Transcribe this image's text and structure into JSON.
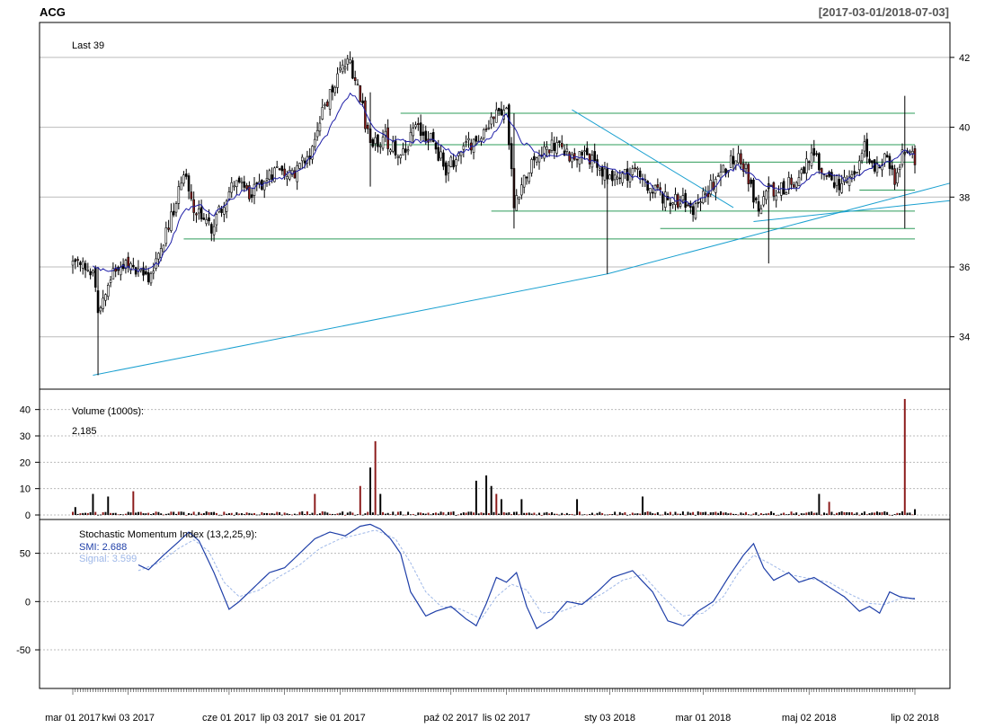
{
  "header": {
    "symbol": "ACG",
    "date_range": "[2017-03-01/2018-07-03]"
  },
  "colors": {
    "up": "#ffffff",
    "down": "#8b1a1a",
    "outline": "#000000",
    "sma": "#1f1fa8",
    "support": "#2e9c5a",
    "trend": "#1aa0d0",
    "smi": "#1f3fa8",
    "signal": "#9fb8e8",
    "grid": "#bbbbbb"
  },
  "chart_data": [
    {
      "type": "candlestick",
      "panel": "price",
      "annotation": "Last 39",
      "ylim": [
        32.5,
        43
      ],
      "y_ticks": [
        34,
        36,
        38,
        40,
        42
      ],
      "x_tick_labels": [
        "mar 01 2017",
        "kwi 03 2017",
        "cze 01 2017",
        "lip 03 2017",
        "sie 01 2017",
        "paź 02 2017",
        "lis 02 2017",
        "sty 03 2018",
        "mar 01 2018",
        "maj 02 2018",
        "lip 02 2018"
      ],
      "x_tick_index": [
        0,
        22,
        62,
        84,
        106,
        150,
        172,
        213,
        250,
        292,
        334
      ],
      "n_bars": 335,
      "anchors": [
        [
          0,
          36.1
        ],
        [
          8,
          35.9
        ],
        [
          10,
          34.6
        ],
        [
          14,
          35.7
        ],
        [
          20,
          36.0
        ],
        [
          26,
          35.8
        ],
        [
          30,
          35.7
        ],
        [
          34,
          36.4
        ],
        [
          40,
          37.6
        ],
        [
          44,
          38.8
        ],
        [
          48,
          37.6
        ],
        [
          55,
          37.1
        ],
        [
          60,
          37.9
        ],
        [
          64,
          38.4
        ],
        [
          70,
          38.1
        ],
        [
          76,
          38.5
        ],
        [
          82,
          38.9
        ],
        [
          88,
          38.6
        ],
        [
          94,
          39.3
        ],
        [
          100,
          40.6
        ],
        [
          106,
          41.6
        ],
        [
          110,
          41.9
        ],
        [
          114,
          40.8
        ],
        [
          118,
          39.5
        ],
        [
          124,
          39.7
        ],
        [
          130,
          39.1
        ],
        [
          136,
          39.9
        ],
        [
          142,
          39.7
        ],
        [
          148,
          38.8
        ],
        [
          154,
          39.3
        ],
        [
          160,
          39.7
        ],
        [
          164,
          39.9
        ],
        [
          168,
          40.6
        ],
        [
          172,
          40.4
        ],
        [
          175,
          37.9
        ],
        [
          180,
          38.7
        ],
        [
          186,
          39.3
        ],
        [
          192,
          39.5
        ],
        [
          198,
          39.2
        ],
        [
          204,
          39.1
        ],
        [
          210,
          38.8
        ],
        [
          216,
          38.5
        ],
        [
          222,
          38.8
        ],
        [
          228,
          38.3
        ],
        [
          234,
          38.0
        ],
        [
          240,
          37.9
        ],
        [
          246,
          37.7
        ],
        [
          252,
          38.2
        ],
        [
          258,
          38.8
        ],
        [
          264,
          39.2
        ],
        [
          268,
          38.6
        ],
        [
          272,
          37.5
        ],
        [
          276,
          38.2
        ],
        [
          282,
          38.3
        ],
        [
          288,
          38.5
        ],
        [
          294,
          39.3
        ],
        [
          298,
          38.6
        ],
        [
          304,
          38.4
        ],
        [
          310,
          38.5
        ],
        [
          314,
          39.4
        ],
        [
          318,
          38.8
        ],
        [
          322,
          39.1
        ],
        [
          326,
          38.4
        ],
        [
          330,
          39.5
        ],
        [
          334,
          39.0
        ]
      ],
      "sma_anchors": [
        [
          8,
          36.0
        ],
        [
          14,
          35.9
        ],
        [
          20,
          36.0
        ],
        [
          26,
          35.9
        ],
        [
          34,
          36.1
        ],
        [
          40,
          36.9
        ],
        [
          44,
          37.6
        ],
        [
          50,
          37.8
        ],
        [
          56,
          37.5
        ],
        [
          62,
          37.9
        ],
        [
          68,
          38.2
        ],
        [
          76,
          38.4
        ],
        [
          84,
          38.6
        ],
        [
          92,
          38.9
        ],
        [
          100,
          39.7
        ],
        [
          106,
          40.5
        ],
        [
          110,
          41.0
        ],
        [
          114,
          40.7
        ],
        [
          120,
          39.9
        ],
        [
          128,
          39.6
        ],
        [
          136,
          39.6
        ],
        [
          144,
          39.6
        ],
        [
          152,
          39.2
        ],
        [
          160,
          39.5
        ],
        [
          166,
          39.7
        ],
        [
          172,
          40.4
        ],
        [
          178,
          39.6
        ],
        [
          186,
          39.2
        ],
        [
          194,
          39.2
        ],
        [
          202,
          39.1
        ],
        [
          210,
          38.9
        ],
        [
          218,
          38.7
        ],
        [
          226,
          38.5
        ],
        [
          234,
          38.1
        ],
        [
          240,
          37.9
        ],
        [
          246,
          37.8
        ],
        [
          252,
          38.1
        ],
        [
          258,
          38.6
        ],
        [
          264,
          38.9
        ],
        [
          270,
          38.6
        ],
        [
          276,
          38.3
        ],
        [
          282,
          38.2
        ],
        [
          288,
          38.3
        ],
        [
          294,
          38.7
        ],
        [
          300,
          38.7
        ],
        [
          306,
          38.5
        ],
        [
          312,
          38.6
        ],
        [
          318,
          38.9
        ],
        [
          324,
          39.0
        ],
        [
          330,
          39.3
        ],
        [
          334,
          39.2
        ]
      ],
      "support_lines": [
        {
          "from": 130,
          "to": 334,
          "y": 40.4
        },
        {
          "from": 118,
          "to": 334,
          "y": 39.5
        },
        {
          "from": 222,
          "to": 334,
          "y": 39.0
        },
        {
          "from": 312,
          "to": 334,
          "y": 38.2
        },
        {
          "from": 166,
          "to": 334,
          "y": 37.6
        },
        {
          "from": 233,
          "to": 334,
          "y": 37.1
        },
        {
          "from": 44,
          "to": 334,
          "y": 36.8
        }
      ],
      "trend_lines": [
        {
          "x1": 8,
          "y1": 32.9,
          "x2": 212,
          "y2": 35.8
        },
        {
          "x1": 212,
          "y1": 35.8,
          "x2": 348,
          "y2": 38.4
        },
        {
          "x1": 198,
          "y1": 40.5,
          "x2": 262,
          "y2": 37.7
        },
        {
          "x1": 270,
          "y1": 37.3,
          "x2": 348,
          "y2": 37.9
        }
      ]
    },
    {
      "type": "bar",
      "panel": "volume",
      "title": "Volume (1000s):",
      "last_value": "2,185",
      "ylim": [
        0,
        45
      ],
      "y_ticks": [
        0,
        10,
        20,
        30,
        40
      ],
      "spikes": [
        [
          1,
          3
        ],
        [
          8,
          8
        ],
        [
          14,
          7
        ],
        [
          24,
          9
        ],
        [
          96,
          8
        ],
        [
          114,
          11
        ],
        [
          118,
          18
        ],
        [
          120,
          28
        ],
        [
          122,
          8
        ],
        [
          160,
          13
        ],
        [
          164,
          15
        ],
        [
          166,
          11
        ],
        [
          168,
          8
        ],
        [
          170,
          6
        ],
        [
          178,
          6
        ],
        [
          200,
          6
        ],
        [
          226,
          7
        ],
        [
          296,
          8
        ],
        [
          300,
          5
        ],
        [
          330,
          44
        ],
        [
          334,
          2.2
        ]
      ]
    },
    {
      "type": "line",
      "panel": "smi",
      "title": "Stochastic Momentum Index (13,2,25,9):",
      "series_labels": [
        "SMI: 2.688",
        "Signal: 3.599"
      ],
      "ylim": [
        -90,
        85
      ],
      "y_ticks": [
        -50,
        0,
        50
      ],
      "smi_anchors": [
        [
          26,
          38
        ],
        [
          30,
          33
        ],
        [
          36,
          48
        ],
        [
          42,
          62
        ],
        [
          46,
          72
        ],
        [
          50,
          63
        ],
        [
          56,
          30
        ],
        [
          62,
          -8
        ],
        [
          66,
          0
        ],
        [
          72,
          15
        ],
        [
          78,
          30
        ],
        [
          84,
          35
        ],
        [
          90,
          50
        ],
        [
          96,
          65
        ],
        [
          102,
          72
        ],
        [
          108,
          68
        ],
        [
          114,
          78
        ],
        [
          118,
          80
        ],
        [
          122,
          75
        ],
        [
          126,
          65
        ],
        [
          130,
          50
        ],
        [
          134,
          10
        ],
        [
          140,
          -15
        ],
        [
          144,
          -10
        ],
        [
          150,
          -5
        ],
        [
          156,
          -18
        ],
        [
          160,
          -25
        ],
        [
          164,
          -2
        ],
        [
          168,
          25
        ],
        [
          172,
          20
        ],
        [
          176,
          30
        ],
        [
          180,
          -5
        ],
        [
          184,
          -28
        ],
        [
          190,
          -18
        ],
        [
          196,
          0
        ],
        [
          202,
          -3
        ],
        [
          208,
          10
        ],
        [
          214,
          25
        ],
        [
          222,
          32
        ],
        [
          230,
          10
        ],
        [
          236,
          -20
        ],
        [
          242,
          -25
        ],
        [
          248,
          -10
        ],
        [
          254,
          0
        ],
        [
          260,
          25
        ],
        [
          266,
          48
        ],
        [
          270,
          60
        ],
        [
          274,
          35
        ],
        [
          278,
          22
        ],
        [
          284,
          30
        ],
        [
          288,
          20
        ],
        [
          294,
          25
        ],
        [
          300,
          15
        ],
        [
          306,
          5
        ],
        [
          312,
          -10
        ],
        [
          316,
          -5
        ],
        [
          320,
          -12
        ],
        [
          324,
          10
        ],
        [
          328,
          5
        ],
        [
          334,
          2.7
        ]
      ],
      "signal_anchors": [
        [
          26,
          32
        ],
        [
          34,
          40
        ],
        [
          42,
          55
        ],
        [
          48,
          64
        ],
        [
          54,
          52
        ],
        [
          60,
          20
        ],
        [
          66,
          5
        ],
        [
          74,
          12
        ],
        [
          82,
          26
        ],
        [
          90,
          38
        ],
        [
          98,
          55
        ],
        [
          106,
          65
        ],
        [
          114,
          70
        ],
        [
          120,
          74
        ],
        [
          128,
          65
        ],
        [
          134,
          40
        ],
        [
          140,
          10
        ],
        [
          146,
          -5
        ],
        [
          154,
          -8
        ],
        [
          162,
          -18
        ],
        [
          168,
          5
        ],
        [
          174,
          18
        ],
        [
          180,
          12
        ],
        [
          186,
          -12
        ],
        [
          194,
          -10
        ],
        [
          202,
          -2
        ],
        [
          210,
          8
        ],
        [
          218,
          22
        ],
        [
          226,
          28
        ],
        [
          234,
          5
        ],
        [
          242,
          -15
        ],
        [
          250,
          -12
        ],
        [
          258,
          5
        ],
        [
          264,
          30
        ],
        [
          270,
          48
        ],
        [
          276,
          40
        ],
        [
          284,
          28
        ],
        [
          292,
          24
        ],
        [
          300,
          20
        ],
        [
          308,
          8
        ],
        [
          316,
          -2
        ],
        [
          322,
          -3
        ],
        [
          328,
          3
        ],
        [
          334,
          3.6
        ]
      ]
    }
  ]
}
